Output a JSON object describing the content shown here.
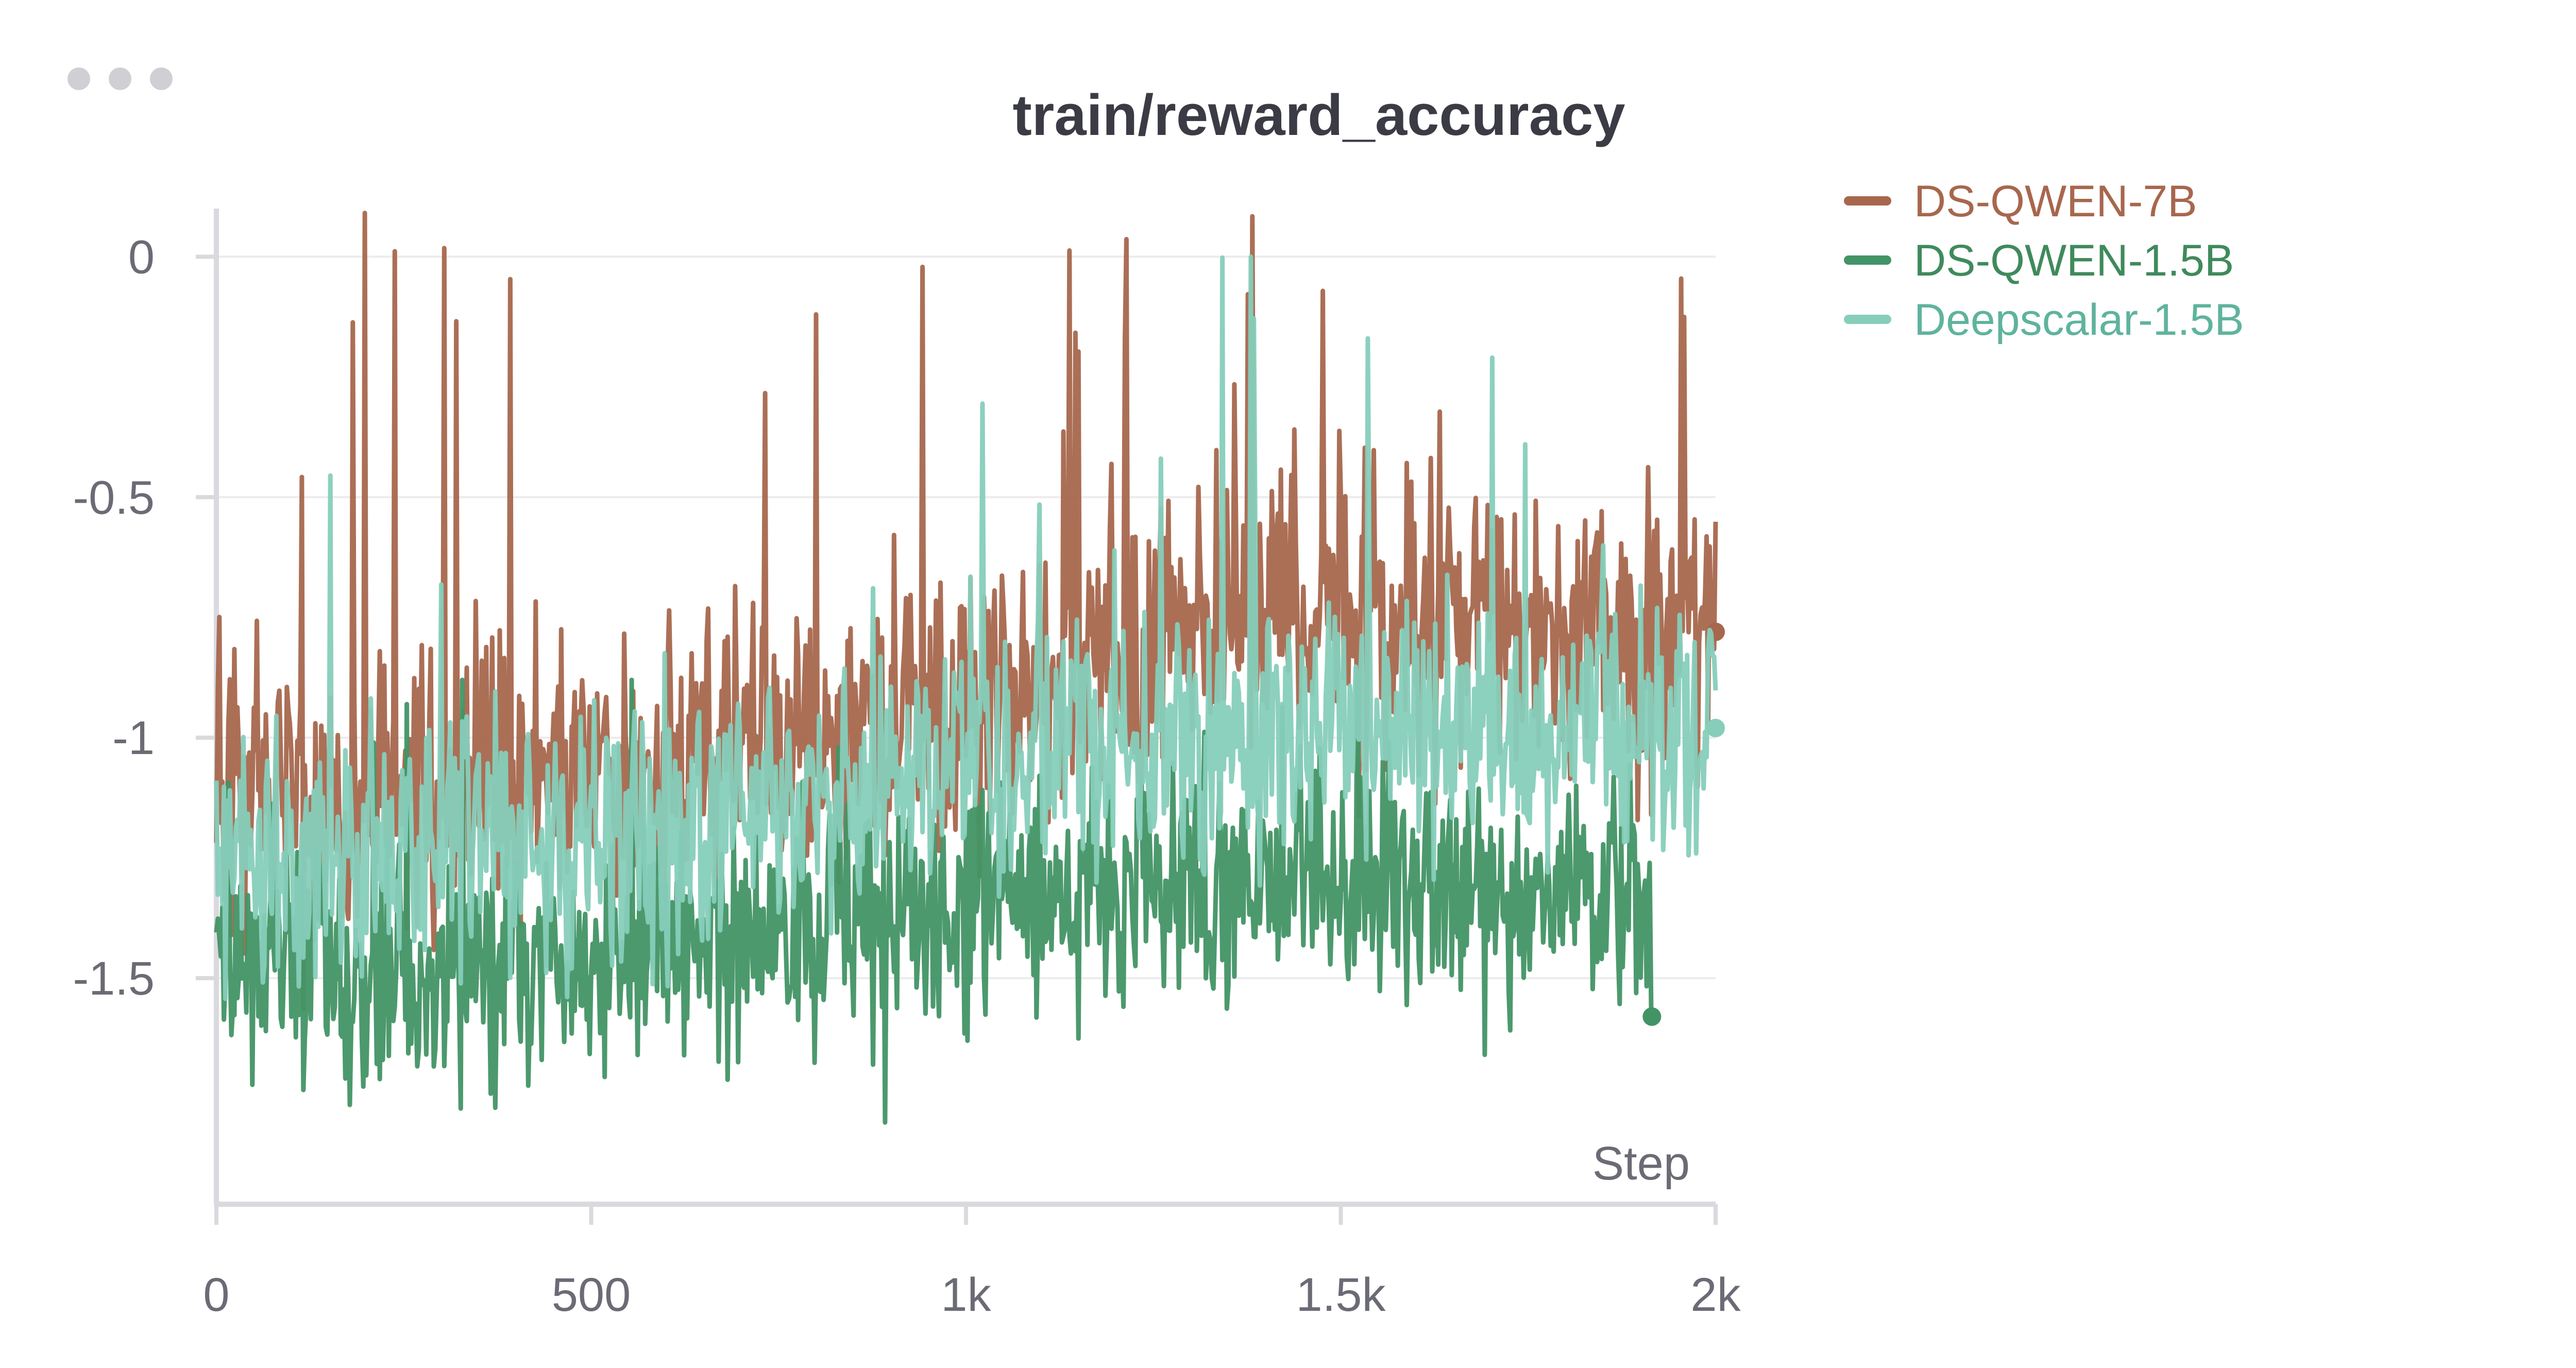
{
  "panel": {
    "menu_icon": "more-horizontal-icon"
  },
  "chart_data": {
    "type": "line",
    "title": "train/reward_accuracy",
    "xlabel": "Step",
    "ylabel": "",
    "xlim": [
      0,
      2000
    ],
    "ylim": [
      -1.97,
      0.1
    ],
    "x_ticks": [
      0,
      500,
      1000,
      1500,
      2000
    ],
    "x_tick_labels": [
      "0",
      "500",
      "1k",
      "1.5k",
      "2k"
    ],
    "y_ticks": [
      0,
      -0.5,
      -1,
      -1.5
    ],
    "y_tick_labels": [
      "0",
      "-0.5",
      "-1",
      "-1.5"
    ],
    "grid": true,
    "legend_position": "top-right",
    "series": [
      {
        "name": "DS-QWEN-7B",
        "color": "#a7674d",
        "x_start": 0,
        "x_end": 2000,
        "trend": [
          [
            0,
            -1.08
          ],
          [
            300,
            -1.12
          ],
          [
            600,
            -1.05
          ],
          [
            900,
            -0.97
          ],
          [
            1000,
            -0.93
          ],
          [
            1200,
            -0.84
          ],
          [
            1400,
            -0.76
          ],
          [
            1600,
            -0.75
          ],
          [
            1800,
            -0.79
          ],
          [
            2000,
            -0.8
          ]
        ],
        "noise": 0.14,
        "spike_max": 0.12,
        "last_value": -0.78
      },
      {
        "name": "DS-QWEN-1.5B",
        "color": "#429465",
        "x_start": 0,
        "x_end": 1915,
        "trend": [
          [
            0,
            -1.42
          ],
          [
            200,
            -1.5
          ],
          [
            400,
            -1.46
          ],
          [
            700,
            -1.42
          ],
          [
            1000,
            -1.36
          ],
          [
            1300,
            -1.3
          ],
          [
            1600,
            -1.3
          ],
          [
            1800,
            -1.33
          ],
          [
            1915,
            -1.35
          ]
        ],
        "noise": 0.12,
        "spike_max": -0.88,
        "last_value": -1.58
      },
      {
        "name": "Deepscalar-1.5B",
        "color": "#86ceba",
        "x_start": 0,
        "x_end": 2000,
        "trend": [
          [
            0,
            -1.25
          ],
          [
            300,
            -1.22
          ],
          [
            600,
            -1.18
          ],
          [
            900,
            -1.1
          ],
          [
            1100,
            -1.04
          ],
          [
            1300,
            -1.0
          ],
          [
            1500,
            -0.98
          ],
          [
            1800,
            -0.98
          ],
          [
            2000,
            -0.98
          ]
        ],
        "noise": 0.13,
        "spike_max": 0.0,
        "last_value": -0.98
      }
    ]
  }
}
